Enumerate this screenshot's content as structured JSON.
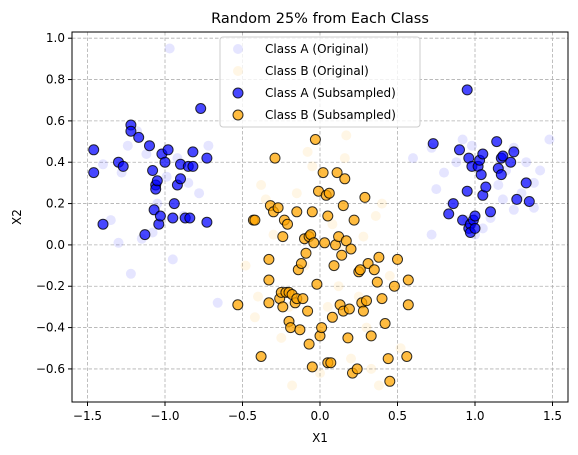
{
  "chart_data": {
    "type": "scatter",
    "title": "Random 25% from Each Class",
    "xlabel": "X1",
    "ylabel": "X2",
    "xlim": [
      -1.6,
      1.6
    ],
    "ylim": [
      -0.76,
      1.03
    ],
    "xticks": [
      -1.5,
      -1.0,
      -0.5,
      0.0,
      0.5,
      1.0,
      1.5
    ],
    "xtick_labels": [
      "−1.5",
      "−1.0",
      "−0.5",
      "0.0",
      "0.5",
      "1.0",
      "1.5"
    ],
    "yticks": [
      -0.6,
      -0.4,
      -0.2,
      0.0,
      0.2,
      0.4,
      0.6,
      0.8,
      1.0
    ],
    "ytick_labels": [
      "−0.6",
      "−0.4",
      "−0.2",
      "0.0",
      "0.2",
      "0.4",
      "0.6",
      "0.8",
      "1.0"
    ],
    "grid": true,
    "legend": "upper-center",
    "series": [
      {
        "name": "Class A (Original)",
        "color": "#0000ff",
        "opacity": 0.1,
        "edge": false,
        "points": [
          [
            -0.97,
            0.95
          ],
          [
            -1.3,
            0.01
          ],
          [
            -1.22,
            -0.14
          ],
          [
            -0.66,
            -0.28
          ],
          [
            -0.95,
            -0.07
          ],
          [
            -1.15,
            0.03
          ],
          [
            -1.4,
            0.39
          ],
          [
            -1.28,
            0.35
          ],
          [
            -0.85,
            0.3
          ],
          [
            -0.72,
            0.48
          ],
          [
            -1.18,
            0.55
          ],
          [
            -1.05,
            0.2
          ],
          [
            -0.88,
            0.14
          ],
          [
            -1.12,
            0.44
          ],
          [
            -0.92,
            0.42
          ],
          [
            -1.35,
            0.12
          ],
          [
            -1.08,
            0.06
          ],
          [
            -0.78,
            0.25
          ],
          [
            -1.24,
            0.48
          ],
          [
            -0.99,
            0.33
          ],
          [
            0.72,
            0.05
          ],
          [
            0.75,
            0.27
          ],
          [
            0.92,
            0.51
          ],
          [
            0.98,
            0.48
          ],
          [
            1.25,
            0.47
          ],
          [
            1.38,
            0.3
          ],
          [
            1.48,
            0.51
          ],
          [
            1.38,
            0.18
          ],
          [
            1.2,
            0.36
          ],
          [
            1.25,
            0.17
          ],
          [
            1.1,
            0.13
          ],
          [
            0.88,
            0.4
          ],
          [
            0.8,
            0.35
          ],
          [
            1.15,
            0.29
          ],
          [
            1.05,
            0.08
          ],
          [
            0.95,
            0.12
          ],
          [
            1.3,
            0.25
          ],
          [
            1.42,
            0.36
          ],
          [
            0.85,
            0.2
          ],
          [
            1.18,
            0.22
          ],
          [
            0.72,
            0.47
          ],
          [
            0.6,
            0.42
          ],
          [
            1.33,
            0.4
          ],
          [
            1.0,
            0.05
          ]
        ]
      },
      {
        "name": "Class B (Original)",
        "color": "#ffa500",
        "opacity": 0.1,
        "edge": false,
        "points": [
          [
            0.17,
            0.53
          ],
          [
            0.16,
            0.42
          ],
          [
            -0.38,
            0.29
          ],
          [
            -0.35,
            0.22
          ],
          [
            0.36,
            0.14
          ],
          [
            -0.05,
            0.38
          ],
          [
            0.28,
            0.04
          ],
          [
            -0.18,
            -0.68
          ],
          [
            0.38,
            -0.68
          ],
          [
            -0.42,
            -0.35
          ],
          [
            0.12,
            -0.2
          ],
          [
            -0.1,
            -0.1
          ],
          [
            0.05,
            -0.3
          ],
          [
            -0.25,
            -0.45
          ],
          [
            0.2,
            -0.55
          ],
          [
            0.45,
            -0.15
          ],
          [
            -0.3,
            0.05
          ],
          [
            0.3,
            -0.4
          ],
          [
            -0.15,
            0.25
          ],
          [
            0.08,
            0.1
          ],
          [
            0.52,
            -0.5
          ],
          [
            -0.48,
            -0.1
          ],
          [
            0.0,
            -0.62
          ],
          [
            -0.08,
            0.45
          ],
          [
            0.4,
            0.2
          ],
          [
            0.25,
            -0.25
          ],
          [
            -0.4,
            -0.25
          ],
          [
            0.15,
            0.0
          ],
          [
            -0.2,
            -0.3
          ],
          [
            0.33,
            -0.6
          ]
        ]
      },
      {
        "name": "Class A (Subsampled)",
        "color": "#0000ff",
        "opacity": 0.72,
        "edge": true,
        "points": [
          [
            -1.46,
            0.46
          ],
          [
            -1.46,
            0.35
          ],
          [
            -1.4,
            0.1
          ],
          [
            -1.3,
            0.4
          ],
          [
            -1.27,
            0.38
          ],
          [
            -1.22,
            0.58
          ],
          [
            -1.22,
            0.55
          ],
          [
            -1.17,
            0.52
          ],
          [
            -1.13,
            0.05
          ],
          [
            -1.1,
            0.48
          ],
          [
            -1.08,
            0.36
          ],
          [
            -1.07,
            0.17
          ],
          [
            -1.06,
            0.29
          ],
          [
            -1.06,
            0.27
          ],
          [
            -1.05,
            0.31
          ],
          [
            -1.04,
            0.1
          ],
          [
            -1.03,
            0.14
          ],
          [
            -1.02,
            0.44
          ],
          [
            -1.0,
            0.4
          ],
          [
            -0.98,
            0.46
          ],
          [
            -0.95,
            0.13
          ],
          [
            -0.94,
            0.2
          ],
          [
            -0.92,
            0.29
          ],
          [
            -0.9,
            0.39
          ],
          [
            -0.9,
            0.32
          ],
          [
            -0.87,
            0.13
          ],
          [
            -0.85,
            0.38
          ],
          [
            -0.84,
            0.13
          ],
          [
            -0.82,
            0.38
          ],
          [
            -0.82,
            0.45
          ],
          [
            -0.77,
            0.66
          ],
          [
            -0.73,
            0.42
          ],
          [
            -0.73,
            0.11
          ],
          [
            0.73,
            0.49
          ],
          [
            0.83,
            0.15
          ],
          [
            0.86,
            0.2
          ],
          [
            0.9,
            0.46
          ],
          [
            0.92,
            0.12
          ],
          [
            0.95,
            0.75
          ],
          [
            0.95,
            0.26
          ],
          [
            0.96,
            0.42
          ],
          [
            0.96,
            0.08
          ],
          [
            0.97,
            0.1
          ],
          [
            0.97,
            0.06
          ],
          [
            0.98,
            0.38
          ],
          [
            0.99,
            0.12
          ],
          [
            1.0,
            0.08
          ],
          [
            1.0,
            0.14
          ],
          [
            1.02,
            0.38
          ],
          [
            1.03,
            0.41
          ],
          [
            1.04,
            0.34
          ],
          [
            1.05,
            0.44
          ],
          [
            1.05,
            0.24
          ],
          [
            1.07,
            0.28
          ],
          [
            1.1,
            0.16
          ],
          [
            1.14,
            0.5
          ],
          [
            1.15,
            0.37
          ],
          [
            1.17,
            0.42
          ],
          [
            1.17,
            0.34
          ],
          [
            1.18,
            0.43
          ],
          [
            1.23,
            0.4
          ],
          [
            1.25,
            0.45
          ],
          [
            1.27,
            0.22
          ],
          [
            1.33,
            0.3
          ],
          [
            1.35,
            0.21
          ]
        ]
      },
      {
        "name": "Class B (Subsampled)",
        "color": "#ffa500",
        "opacity": 0.75,
        "edge": true,
        "points": [
          [
            -0.53,
            -0.29
          ],
          [
            -0.43,
            0.12
          ],
          [
            -0.42,
            0.12
          ],
          [
            -0.38,
            -0.54
          ],
          [
            -0.33,
            -0.07
          ],
          [
            -0.33,
            -0.17
          ],
          [
            -0.33,
            -0.28
          ],
          [
            -0.32,
            0.19
          ],
          [
            -0.3,
            0.16
          ],
          [
            -0.29,
            0.42
          ],
          [
            -0.27,
            0.18
          ],
          [
            -0.26,
            -0.26
          ],
          [
            -0.25,
            -0.23
          ],
          [
            -0.24,
            0.04
          ],
          [
            -0.24,
            -0.3
          ],
          [
            -0.23,
            0.12
          ],
          [
            -0.22,
            -0.23
          ],
          [
            -0.21,
            0.1
          ],
          [
            -0.2,
            -0.37
          ],
          [
            -0.2,
            -0.23
          ],
          [
            -0.19,
            -0.4
          ],
          [
            -0.18,
            -0.24
          ],
          [
            -0.16,
            -0.28
          ],
          [
            -0.15,
            -0.26
          ],
          [
            -0.15,
            0.16
          ],
          [
            -0.14,
            -0.12
          ],
          [
            -0.13,
            -0.41
          ],
          [
            -0.12,
            -0.09
          ],
          [
            -0.11,
            -0.26
          ],
          [
            -0.1,
            0.03
          ],
          [
            -0.09,
            -0.04
          ],
          [
            -0.08,
            -0.32
          ],
          [
            -0.07,
            -0.48
          ],
          [
            -0.07,
            0.04
          ],
          [
            -0.06,
            0.05
          ],
          [
            -0.05,
            -0.59
          ],
          [
            -0.05,
            0.16
          ],
          [
            -0.04,
            0.01
          ],
          [
            -0.03,
            0.51
          ],
          [
            -0.02,
            -0.19
          ],
          [
            -0.01,
            0.26
          ],
          [
            0.0,
            -0.44
          ],
          [
            0.01,
            -0.4
          ],
          [
            0.02,
            0.35
          ],
          [
            0.03,
            0.01
          ],
          [
            0.04,
            0.24
          ],
          [
            0.05,
            -0.57
          ],
          [
            0.05,
            0.14
          ],
          [
            0.06,
            0.25
          ],
          [
            0.07,
            -0.57
          ],
          [
            0.08,
            -0.35
          ],
          [
            0.09,
            -0.1
          ],
          [
            0.1,
            0.0
          ],
          [
            0.11,
            0.35
          ],
          [
            0.12,
            0.04
          ],
          [
            0.13,
            -0.29
          ],
          [
            0.14,
            -0.05
          ],
          [
            0.15,
            -0.32
          ],
          [
            0.15,
            0.19
          ],
          [
            0.16,
            0.32
          ],
          [
            0.17,
            0.02
          ],
          [
            0.18,
            -0.45
          ],
          [
            0.19,
            -0.31
          ],
          [
            0.2,
            -0.02
          ],
          [
            0.21,
            -0.62
          ],
          [
            0.22,
            0.12
          ],
          [
            0.24,
            -0.6
          ],
          [
            0.25,
            -0.13
          ],
          [
            0.26,
            -0.12
          ],
          [
            0.27,
            -0.28
          ],
          [
            0.28,
            -0.32
          ],
          [
            0.29,
            0.23
          ],
          [
            0.3,
            -0.27
          ],
          [
            0.31,
            -0.09
          ],
          [
            0.33,
            -0.44
          ],
          [
            0.35,
            -0.12
          ],
          [
            0.37,
            -0.18
          ],
          [
            0.38,
            -0.06
          ],
          [
            0.4,
            -0.26
          ],
          [
            0.42,
            -0.38
          ],
          [
            0.44,
            -0.55
          ],
          [
            0.45,
            -0.66
          ],
          [
            0.48,
            -0.2
          ],
          [
            0.5,
            -0.07
          ],
          [
            0.56,
            -0.54
          ],
          [
            0.57,
            -0.17
          ],
          [
            0.57,
            -0.29
          ]
        ]
      }
    ]
  }
}
